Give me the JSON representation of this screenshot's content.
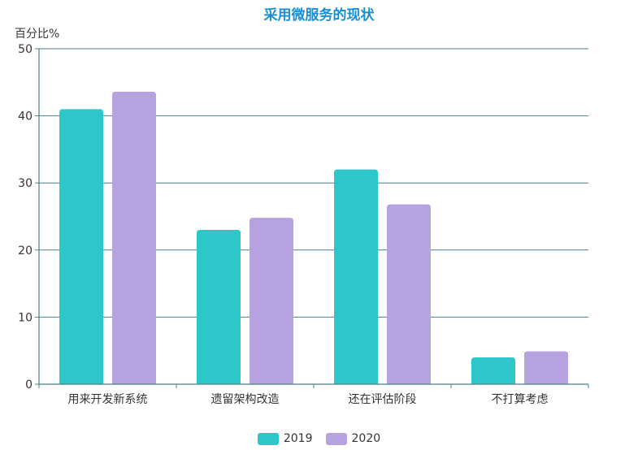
{
  "chart_data": {
    "type": "bar",
    "title": "采用微服务的现状",
    "ylabel": "百分比%",
    "xlabel": "",
    "ylim": [
      0,
      50
    ],
    "yticks": [
      0,
      10,
      20,
      30,
      40,
      50
    ],
    "categories": [
      "用来开发新系统",
      "遗留架构改造",
      "还在评估阶段",
      "不打算考虑"
    ],
    "series": [
      {
        "name": "2019",
        "values": [
          41,
          23,
          32,
          4
        ],
        "color": "#2ec7c9"
      },
      {
        "name": "2020",
        "values": [
          43.6,
          24.8,
          26.8,
          4.9
        ],
        "color": "#b6a2de"
      }
    ],
    "grid": true,
    "legend": "bottom-center"
  }
}
